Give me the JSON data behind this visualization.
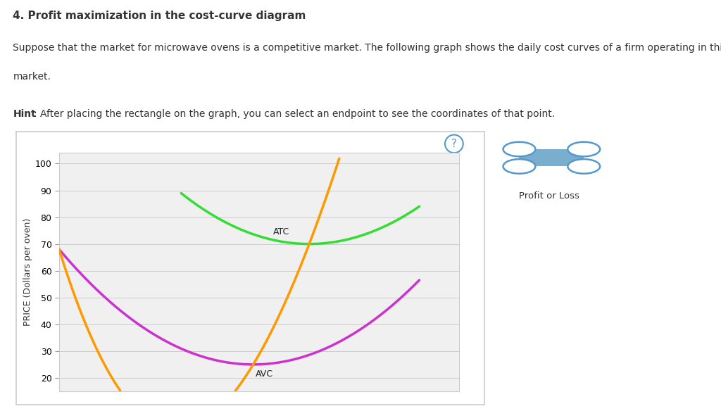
{
  "title": "4. Profit maximization in the cost-curve diagram",
  "subtitle1": "Suppose that the market for microwave ovens is a competitive market. The following graph shows the daily cost curves of a firm operating in this",
  "subtitle2": "market.",
  "hint_bold": "Hint",
  "hint_rest": ": After placing the rectangle on the graph, you can select an endpoint to see the coordinates of that point.",
  "ylabel": "PRICE (Dollars per oven)",
  "ylim": [
    15,
    104
  ],
  "xlim": [
    0,
    10
  ],
  "yticks": [
    20,
    30,
    40,
    50,
    60,
    70,
    80,
    90,
    100
  ],
  "atc_color": "#33dd33",
  "avc_color": "#cc33cc",
  "mc_color": "#ff9900",
  "bg_color": "#ffffff",
  "plot_bg_color": "#f0f0f0",
  "grid_color": "#cccccc",
  "text_color": "#333333",
  "border_color": "#cccccc",
  "widget_fill": "#7aaecf",
  "widget_edge": "#5599cc",
  "qmark_color": "#5599cc"
}
